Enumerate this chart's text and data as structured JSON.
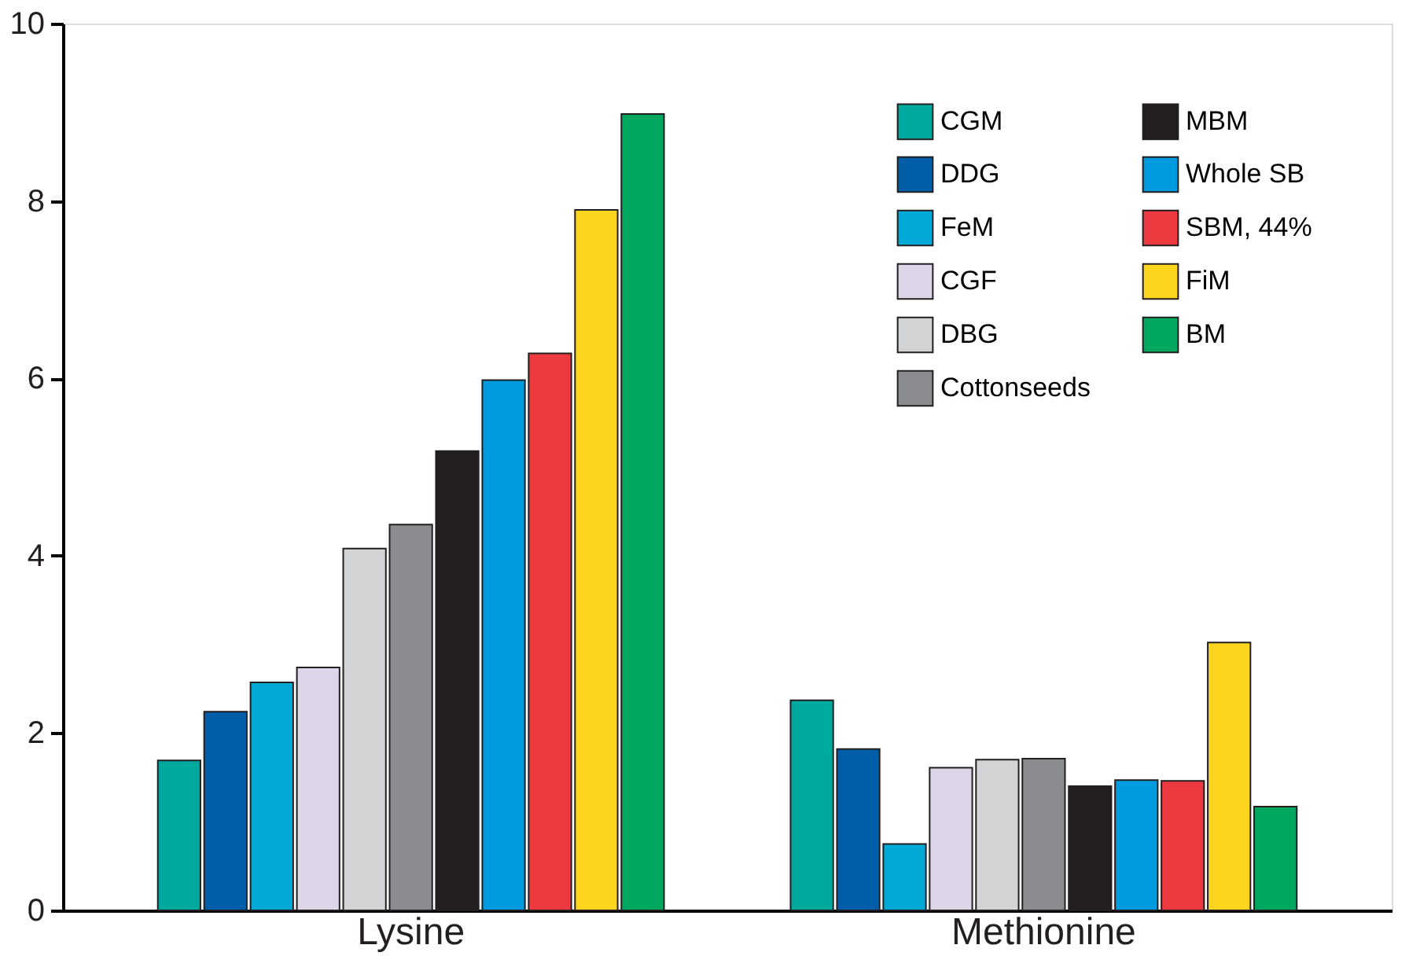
{
  "chart_data": {
    "type": "bar",
    "categories": [
      "Lysine",
      "Methionine"
    ],
    "series": [
      {
        "name": "CGM",
        "color": "#00a99d",
        "values": [
          1.69,
          2.37
        ]
      },
      {
        "name": "DDG",
        "color": "#005ea8",
        "values": [
          2.24,
          1.82
        ]
      },
      {
        "name": "FeM",
        "color": "#00a9d6",
        "values": [
          2.57,
          0.75
        ]
      },
      {
        "name": "CGF",
        "color": "#ddd5e8",
        "values": [
          2.74,
          1.61
        ]
      },
      {
        "name": "DBG",
        "color": "#d1d3d4",
        "values": [
          4.08,
          1.7
        ]
      },
      {
        "name": "Cottonseeds",
        "color": "#8a8c8f",
        "values": [
          4.35,
          1.71
        ]
      },
      {
        "name": "MBM",
        "color": "#231f20",
        "values": [
          5.18,
          1.4
        ]
      },
      {
        "name": "Whole SB",
        "color": "#009ade",
        "values": [
          5.98,
          1.47
        ]
      },
      {
        "name": "SBM, 44%",
        "color": "#ed3a41",
        "values": [
          6.28,
          1.46
        ]
      },
      {
        "name": "FiM",
        "color": "#fdd51e",
        "values": [
          7.9,
          3.02
        ]
      },
      {
        "name": "BM",
        "color": "#00a85f",
        "values": [
          8.98,
          1.17
        ]
      }
    ],
    "ylim": [
      0,
      10
    ],
    "yticks": [
      0,
      2,
      4,
      6,
      8,
      10
    ],
    "grid": false,
    "legend": "top right"
  }
}
